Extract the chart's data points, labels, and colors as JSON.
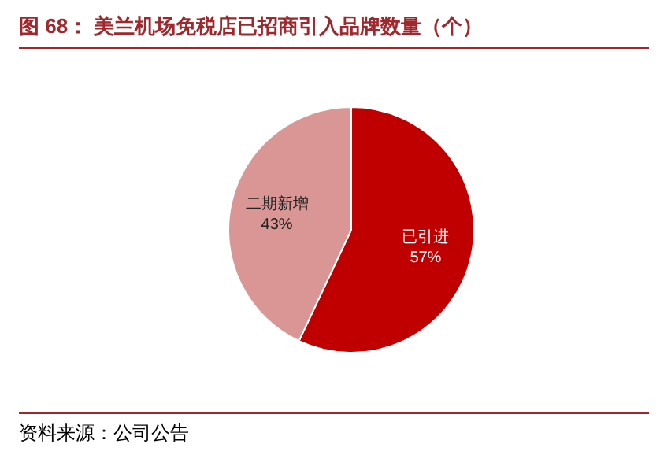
{
  "chart_data": {
    "type": "pie",
    "title": "图 68：  美兰机场免税店已招商引入品牌数量（个）",
    "categories": [
      "已引进",
      "二期新增"
    ],
    "values": [
      57,
      43
    ],
    "colors": [
      "#c00000",
      "#d99694"
    ],
    "value_labels": [
      "57%",
      "43%"
    ],
    "legend": false,
    "annotations": [
      "资料来源：公司公告"
    ]
  }
}
